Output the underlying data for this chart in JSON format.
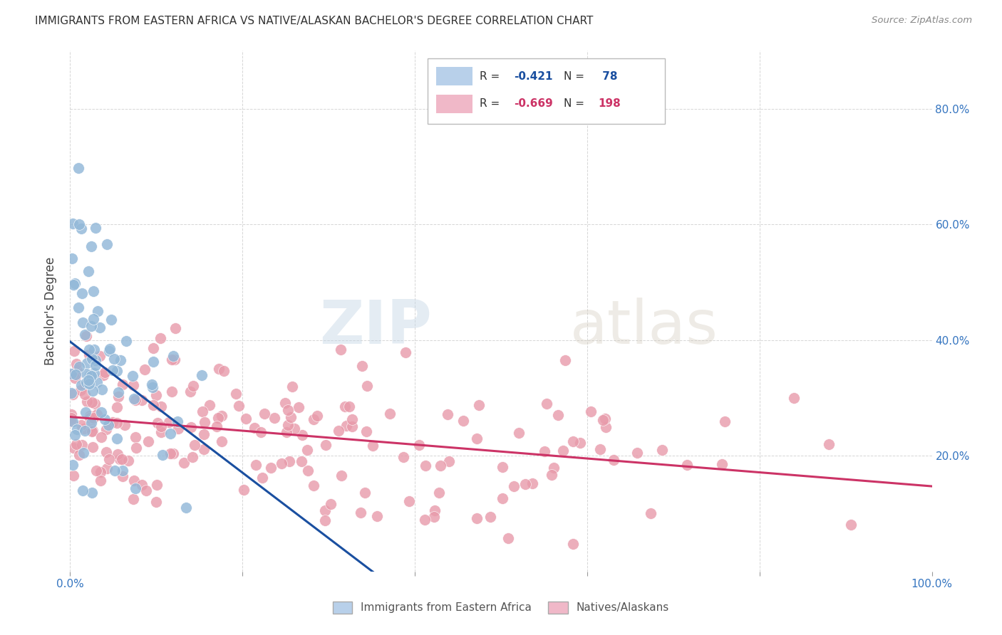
{
  "title": "IMMIGRANTS FROM EASTERN AFRICA VS NATIVE/ALASKAN BACHELOR'S DEGREE CORRELATION CHART",
  "source": "Source: ZipAtlas.com",
  "ylabel": "Bachelor's Degree",
  "right_yticks": [
    "80.0%",
    "60.0%",
    "40.0%",
    "20.0%"
  ],
  "right_ytick_vals": [
    0.8,
    0.6,
    0.4,
    0.2
  ],
  "watermark_zip": "ZIP",
  "watermark_atlas": "atlas",
  "blue_R": -0.421,
  "blue_N": 78,
  "pink_R": -0.669,
  "pink_N": 198,
  "xlim": [
    0.0,
    1.0
  ],
  "ylim": [
    0.0,
    0.9
  ],
  "blue_line_color": "#1a4fa0",
  "pink_line_color": "#cc3366",
  "blue_scatter_color": "#92b8d8",
  "pink_scatter_color": "#e89aaa",
  "blue_scatter_edge": "#ffffff",
  "pink_scatter_edge": "#ffffff",
  "grid_color": "#cccccc",
  "bg_color": "#ffffff",
  "legend_blue_patch": "#b8d0ea",
  "legend_pink_patch": "#f0b8c8",
  "blue_val_color": "#1a4fa0",
  "pink_val_color": "#cc3366",
  "bottom_legend_blue": "#b8d0ea",
  "bottom_legend_pink": "#f0b8c8"
}
